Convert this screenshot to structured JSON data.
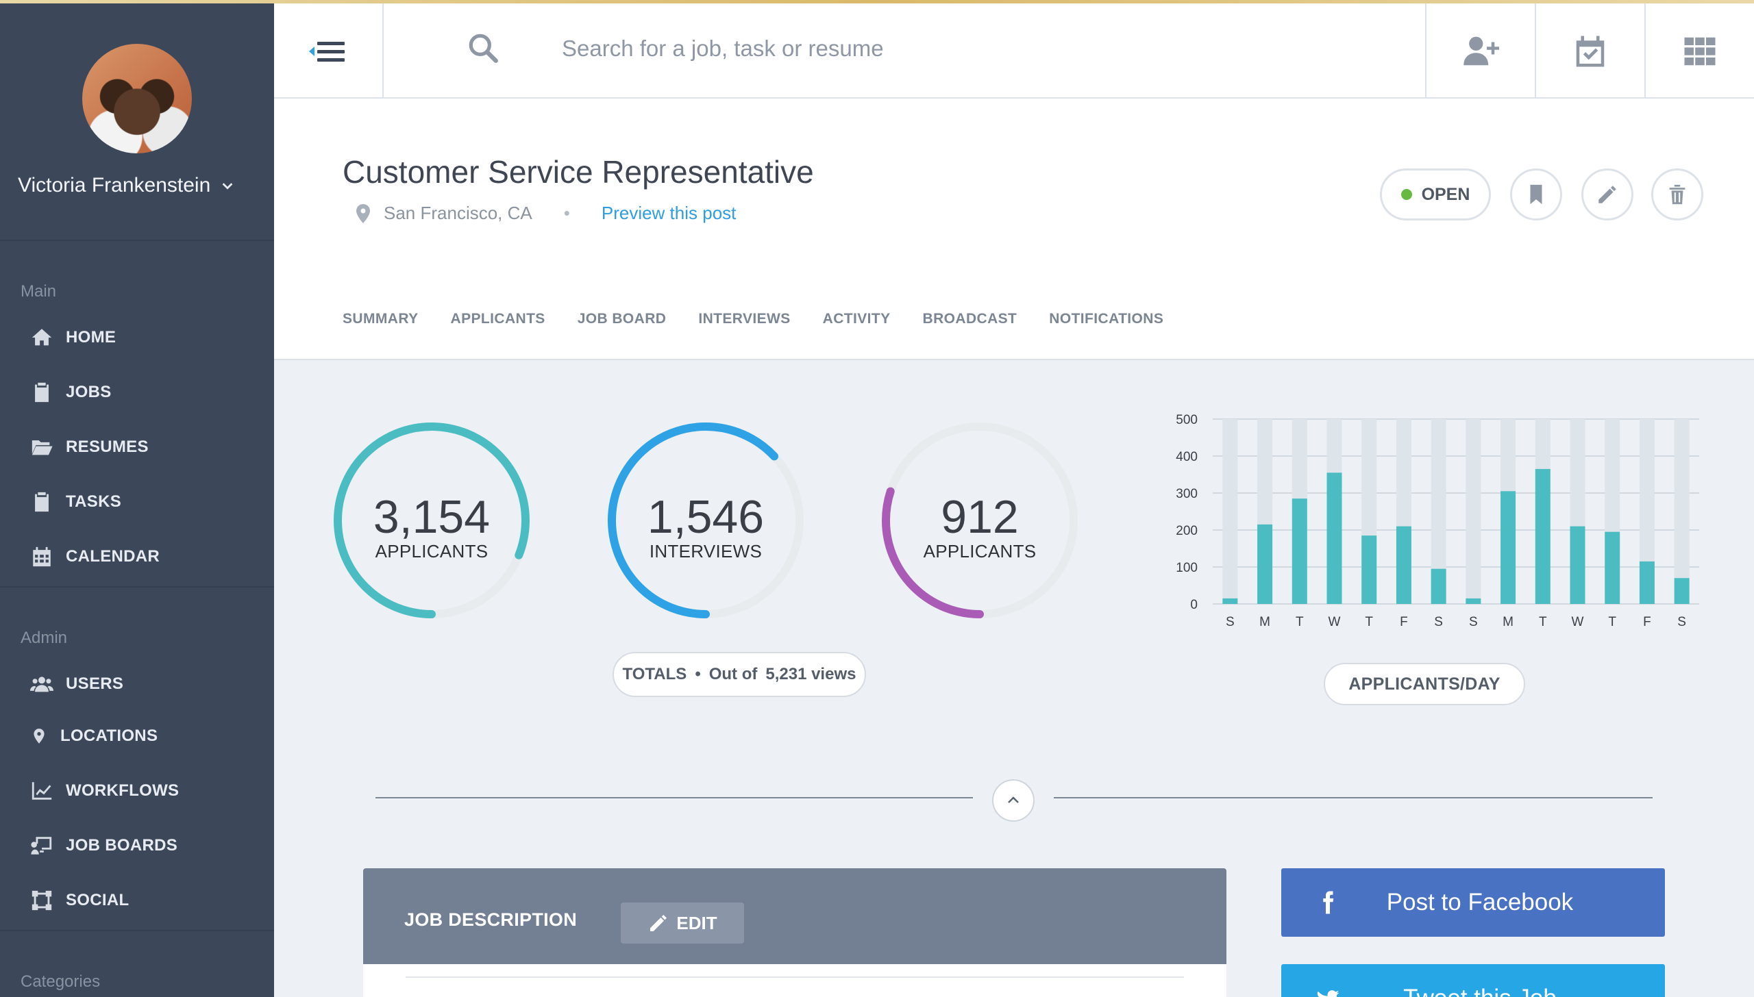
{
  "user": {
    "name": "Victoria Frankenstein"
  },
  "sidebar": {
    "main_label": "Main",
    "main_items": [
      {
        "label": "HOME",
        "icon": "home-icon"
      },
      {
        "label": "JOBS",
        "icon": "clipboard-icon"
      },
      {
        "label": "RESUMES",
        "icon": "folder-open-icon"
      },
      {
        "label": "TASKS",
        "icon": "task-check-icon"
      },
      {
        "label": "CALENDAR",
        "icon": "calendar-grid-icon"
      }
    ],
    "admin_label": "Admin",
    "admin_items": [
      {
        "label": "USERS",
        "icon": "users-icon"
      },
      {
        "label": "LOCATIONS",
        "icon": "map-pin-icon"
      },
      {
        "label": "WORKFLOWS",
        "icon": "line-chart-icon"
      },
      {
        "label": "JOB BOARDS",
        "icon": "job-board-icon"
      },
      {
        "label": "SOCIAL",
        "icon": "social-square-icon"
      }
    ],
    "categories_label": "Categories"
  },
  "topbar": {
    "search_placeholder": "Search for a job, task or resume",
    "icons": [
      "add-user-icon",
      "calendar-check-icon",
      "apps-grid-icon"
    ]
  },
  "job": {
    "title": "Customer Service Representative",
    "location": "San Francisco, CA",
    "preview_link": "Preview this post",
    "status": "OPEN",
    "status_color": "#68b942"
  },
  "tabs": [
    "SUMMARY",
    "APPLICANTS",
    "JOB BOARD",
    "INTERVIEWS",
    "ACTIVITY",
    "BROADCAST",
    "NOTIFICATIONS"
  ],
  "stats": [
    {
      "value": "3,154",
      "label": "APPLICANTS",
      "color": "#4bbdc2",
      "fraction": 0.81
    },
    {
      "value": "1,546",
      "label": "INTERVIEWS",
      "color": "#2ea2e4",
      "fraction": 0.63
    },
    {
      "value": "912",
      "label": "APPLICANTS",
      "color": "#a95bb5",
      "fraction": 0.3
    }
  ],
  "totals": {
    "label": "TOTALS",
    "separator": "•",
    "text": "Out of",
    "views": "5,231 views"
  },
  "chart_data": {
    "type": "bar",
    "categories": [
      "S",
      "M",
      "T",
      "W",
      "T",
      "F",
      "S",
      "S",
      "M",
      "T",
      "W",
      "T",
      "F",
      "S"
    ],
    "values": [
      15,
      215,
      285,
      355,
      185,
      210,
      95,
      15,
      305,
      365,
      210,
      195,
      115,
      70
    ],
    "ylim": [
      0,
      500
    ],
    "yticks": [
      "0",
      "100",
      "200",
      "300",
      "400",
      "500"
    ],
    "bar_color": "#4bbdc2",
    "track_color": "#dde4ea",
    "grid": true,
    "label": "APPLICANTS/DAY"
  },
  "job_description": {
    "title": "JOB DESCRIPTION",
    "edit_label": "EDIT"
  },
  "social": {
    "facebook_label": "Post to Facebook",
    "twitter_label": "Tweet this Job"
  }
}
